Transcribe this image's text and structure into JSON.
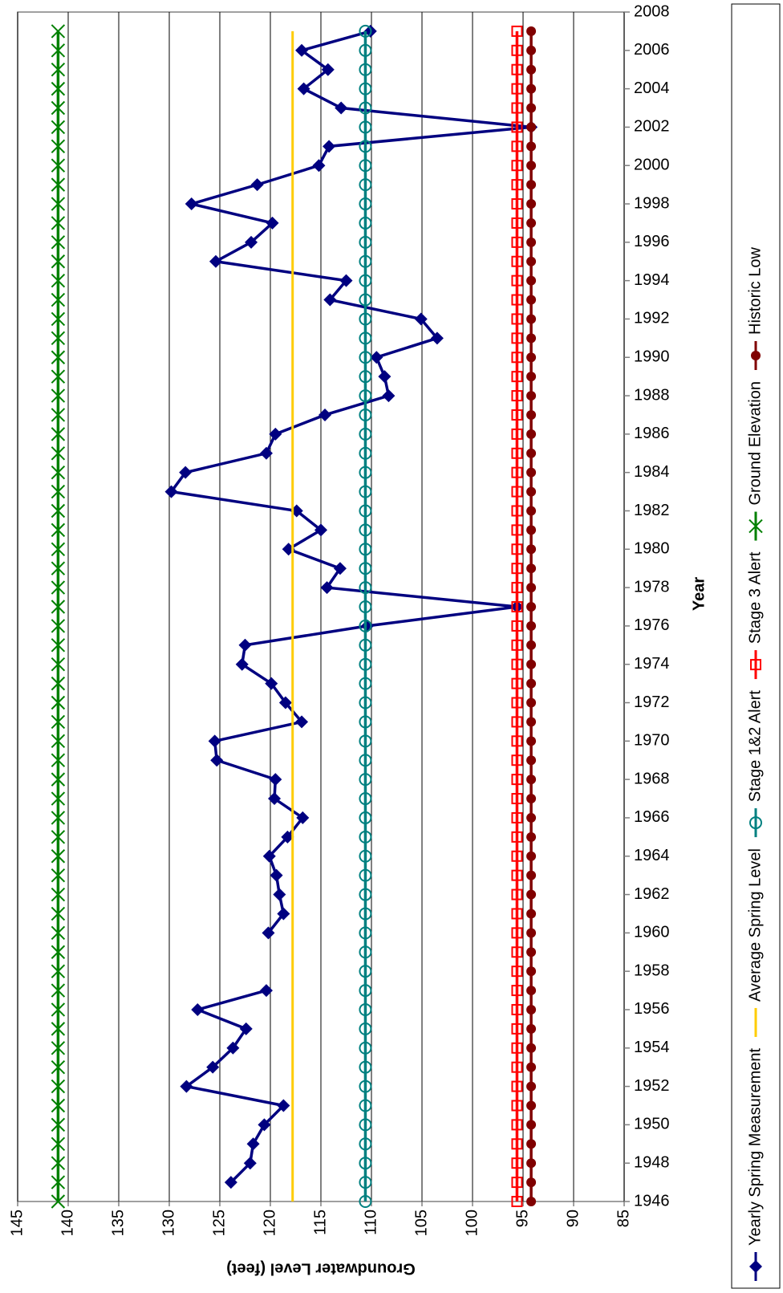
{
  "chart_data": {
    "type": "line",
    "x_label": "Year",
    "y_label": "Groundwater Level (feet)",
    "x": [
      1946,
      1947,
      1948,
      1949,
      1950,
      1951,
      1952,
      1953,
      1954,
      1955,
      1956,
      1957,
      1958,
      1959,
      1960,
      1961,
      1962,
      1963,
      1964,
      1965,
      1966,
      1967,
      1968,
      1969,
      1970,
      1971,
      1972,
      1973,
      1974,
      1975,
      1976,
      1977,
      1978,
      1979,
      1980,
      1981,
      1982,
      1983,
      1984,
      1985,
      1986,
      1987,
      1988,
      1989,
      1990,
      1991,
      1992,
      1993,
      1994,
      1995,
      1996,
      1997,
      1998,
      1999,
      2000,
      2001,
      2002,
      2003,
      2004,
      2005,
      2006,
      2007
    ],
    "xlim": [
      1946,
      2008
    ],
    "xticks": [
      1946,
      1948,
      1950,
      1952,
      1954,
      1956,
      1958,
      1960,
      1962,
      1964,
      1966,
      1968,
      1970,
      1972,
      1974,
      1976,
      1978,
      1980,
      1982,
      1984,
      1986,
      1988,
      1990,
      1992,
      1994,
      1996,
      1998,
      2000,
      2002,
      2004,
      2006,
      2008
    ],
    "ylim": [
      85,
      145
    ],
    "yticks": [
      145,
      140,
      135,
      130,
      125,
      120,
      115,
      110,
      105,
      100,
      95,
      90,
      85
    ],
    "grid": true,
    "series": [
      {
        "name": "Yearly Spring Measurement",
        "color": "#000080",
        "marker": "diamond",
        "values": [
          null,
          123.9,
          122.0,
          121.7,
          120.6,
          118.7,
          128.3,
          125.7,
          123.7,
          122.4,
          127.2,
          120.4,
          null,
          null,
          120.2,
          118.7,
          119.1,
          119.4,
          120.1,
          118.3,
          116.8,
          119.6,
          119.5,
          125.3,
          125.5,
          116.9,
          118.5,
          119.9,
          122.8,
          122.5,
          110.4,
          95.6,
          114.4,
          113.1,
          118.2,
          115.0,
          117.4,
          129.8,
          128.4,
          120.4,
          119.5,
          114.6,
          108.3,
          108.7,
          109.5,
          103.5,
          105.1,
          114.1,
          112.5,
          125.4,
          121.9,
          119.8,
          127.8,
          121.3,
          115.2,
          114.2,
          94.2,
          113.0,
          116.7,
          114.3,
          116.9,
          110.1
        ]
      },
      {
        "name": "Average Spring Level",
        "color": "#ffcc00",
        "marker": "none",
        "values": [
          117.8,
          117.8,
          117.8,
          117.8,
          117.8,
          117.8,
          117.8,
          117.8,
          117.8,
          117.8,
          117.8,
          117.8,
          117.8,
          117.8,
          117.8,
          117.8,
          117.8,
          117.8,
          117.8,
          117.8,
          117.8,
          117.8,
          117.8,
          117.8,
          117.8,
          117.8,
          117.8,
          117.8,
          117.8,
          117.8,
          117.8,
          117.8,
          117.8,
          117.8,
          117.8,
          117.8,
          117.8,
          117.8,
          117.8,
          117.8,
          117.8,
          117.8,
          117.8,
          117.8,
          117.8,
          117.8,
          117.8,
          117.8,
          117.8,
          117.8,
          117.8,
          117.8,
          117.8,
          117.8,
          117.8,
          117.8,
          117.8,
          117.8,
          117.8,
          117.8,
          117.8,
          117.8
        ]
      },
      {
        "name": "Stage 1&2 Alert",
        "color": "#008080",
        "marker": "open-circle",
        "values": [
          110.6,
          110.6,
          110.6,
          110.6,
          110.6,
          110.6,
          110.6,
          110.6,
          110.6,
          110.6,
          110.6,
          110.6,
          110.6,
          110.6,
          110.6,
          110.6,
          110.6,
          110.6,
          110.6,
          110.6,
          110.6,
          110.6,
          110.6,
          110.6,
          110.6,
          110.6,
          110.6,
          110.6,
          110.6,
          110.6,
          110.6,
          110.6,
          110.6,
          110.6,
          110.6,
          110.6,
          110.6,
          110.6,
          110.6,
          110.6,
          110.6,
          110.6,
          110.6,
          110.6,
          110.6,
          110.6,
          110.6,
          110.6,
          110.6,
          110.6,
          110.6,
          110.6,
          110.6,
          110.6,
          110.6,
          110.6,
          110.6,
          110.6,
          110.6,
          110.6,
          110.6,
          110.6
        ]
      },
      {
        "name": "Stage 3 Alert",
        "color": "#ff0000",
        "marker": "open-square",
        "values": [
          95.6,
          95.6,
          95.6,
          95.6,
          95.6,
          95.6,
          95.6,
          95.6,
          95.6,
          95.6,
          95.6,
          95.6,
          95.6,
          95.6,
          95.6,
          95.6,
          95.6,
          95.6,
          95.6,
          95.6,
          95.6,
          95.6,
          95.6,
          95.6,
          95.6,
          95.6,
          95.6,
          95.6,
          95.6,
          95.6,
          95.6,
          95.6,
          95.6,
          95.6,
          95.6,
          95.6,
          95.6,
          95.6,
          95.6,
          95.6,
          95.6,
          95.6,
          95.6,
          95.6,
          95.6,
          95.6,
          95.6,
          95.6,
          95.6,
          95.6,
          95.6,
          95.6,
          95.6,
          95.6,
          95.6,
          95.6,
          95.6,
          95.6,
          95.6,
          95.6,
          95.6,
          95.6
        ]
      },
      {
        "name": "Ground Elevation",
        "color": "#008000",
        "marker": "x",
        "values": [
          141.0,
          141.0,
          141.0,
          141.0,
          141.0,
          141.0,
          141.0,
          141.0,
          141.0,
          141.0,
          141.0,
          141.0,
          141.0,
          141.0,
          141.0,
          141.0,
          141.0,
          141.0,
          141.0,
          141.0,
          141.0,
          141.0,
          141.0,
          141.0,
          141.0,
          141.0,
          141.0,
          141.0,
          141.0,
          141.0,
          141.0,
          141.0,
          141.0,
          141.0,
          141.0,
          141.0,
          141.0,
          141.0,
          141.0,
          141.0,
          141.0,
          141.0,
          141.0,
          141.0,
          141.0,
          141.0,
          141.0,
          141.0,
          141.0,
          141.0,
          141.0,
          141.0,
          141.0,
          141.0,
          141.0,
          141.0,
          141.0,
          141.0,
          141.0,
          141.0,
          141.0,
          141.0
        ]
      },
      {
        "name": "Historic Low",
        "color": "#800000",
        "marker": "filled-circle",
        "values": [
          94.2,
          94.2,
          94.2,
          94.2,
          94.2,
          94.2,
          94.2,
          94.2,
          94.2,
          94.2,
          94.2,
          94.2,
          94.2,
          94.2,
          94.2,
          94.2,
          94.2,
          94.2,
          94.2,
          94.2,
          94.2,
          94.2,
          94.2,
          94.2,
          94.2,
          94.2,
          94.2,
          94.2,
          94.2,
          94.2,
          94.2,
          94.2,
          94.2,
          94.2,
          94.2,
          94.2,
          94.2,
          94.2,
          94.2,
          94.2,
          94.2,
          94.2,
          94.2,
          94.2,
          94.2,
          94.2,
          94.2,
          94.2,
          94.2,
          94.2,
          94.2,
          94.2,
          94.2,
          94.2,
          94.2,
          94.2,
          94.2,
          94.2,
          94.2,
          94.2,
          94.2,
          94.2
        ]
      }
    ]
  }
}
